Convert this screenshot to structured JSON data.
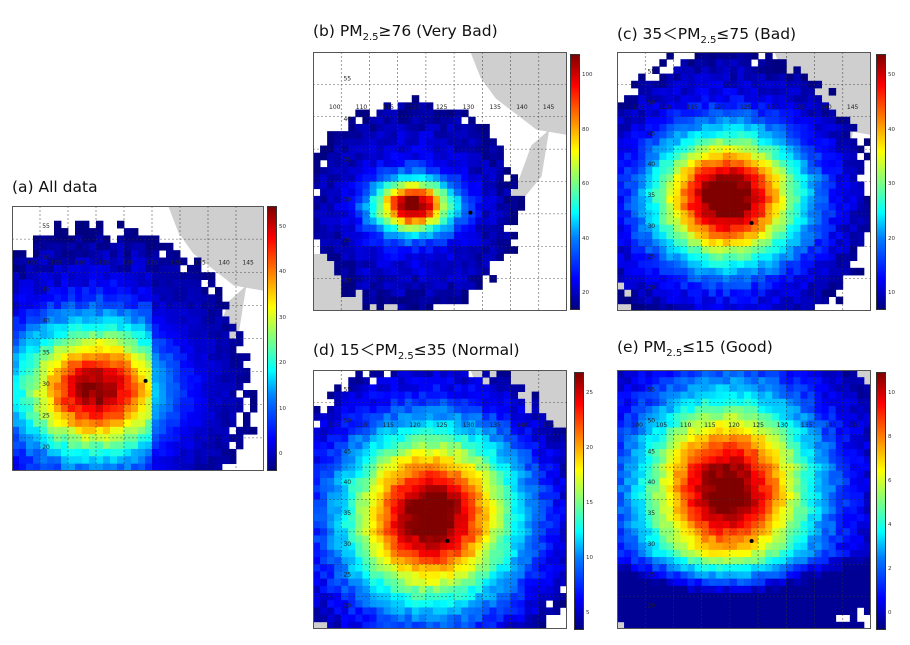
{
  "panels": [
    {
      "id": "a",
      "title": "(a) All data",
      "colorbar": {
        "max": 52,
        "ticks": [
          "50",
          "40",
          "30",
          "20",
          "10",
          "0"
        ]
      },
      "lon_ticks": [
        "100",
        "105",
        "110",
        "115",
        "120",
        "125",
        "130",
        "135",
        "140",
        "145"
      ],
      "lat_ticks": [
        "55",
        "50",
        "45",
        "40",
        "35",
        "30",
        "25",
        "20"
      ]
    },
    {
      "id": "b",
      "title_prefix": "(b) PM",
      "title_sub": "2.5",
      "title_suffix": "≥76 (Very Bad)",
      "colorbar": {
        "max": 110,
        "ticks": [
          "100",
          "80",
          "60",
          "40",
          "20"
        ]
      },
      "lon_ticks": [
        "100",
        "110",
        "115",
        "120",
        "125",
        "130",
        "135",
        "140",
        "145"
      ],
      "lat_ticks": [
        "55",
        "40",
        "35",
        "30",
        "25",
        "20"
      ]
    },
    {
      "id": "c",
      "title_prefix": "(c) 35＜PM",
      "title_sub": "2.5",
      "title_suffix": "≤75 (Bad)",
      "colorbar": {
        "max": 55,
        "ticks": [
          "50",
          "40",
          "30",
          "20",
          "10"
        ]
      },
      "lon_ticks": [
        "105",
        "110",
        "115",
        "120",
        "125",
        "130",
        "135",
        "140",
        "145"
      ],
      "lat_ticks": [
        "55",
        "50",
        "45",
        "40",
        "35",
        "30",
        "25",
        "20"
      ]
    },
    {
      "id": "d",
      "title_prefix": "(d) 15＜PM",
      "title_sub": "2.5",
      "title_suffix": "≤35 (Normal)",
      "colorbar": {
        "max": 28,
        "ticks": [
          "25",
          "20",
          "15",
          "10",
          "5"
        ]
      },
      "lon_ticks": [
        "105",
        "110",
        "115",
        "120",
        "125",
        "130",
        "135",
        "140",
        "145"
      ],
      "lat_ticks": [
        "55",
        "50",
        "45",
        "40",
        "35",
        "30",
        "25",
        "20"
      ]
    },
    {
      "id": "e",
      "title_prefix": "(e) PM",
      "title_sub": "2.5",
      "title_suffix": "≤15 (Good)",
      "colorbar": {
        "max": 11,
        "ticks": [
          "10",
          "8",
          "6",
          "4",
          "2",
          "0"
        ]
      },
      "lon_ticks": [
        "100",
        "105",
        "110",
        "115",
        "120",
        "125",
        "130",
        "135",
        "140",
        "145"
      ],
      "lat_ticks": [
        "55",
        "50",
        "45",
        "40",
        "35",
        "30",
        "25",
        "20"
      ]
    }
  ],
  "colors": {
    "land": "#cfcfcf",
    "grid": "#333333",
    "marker": "#000000"
  }
}
